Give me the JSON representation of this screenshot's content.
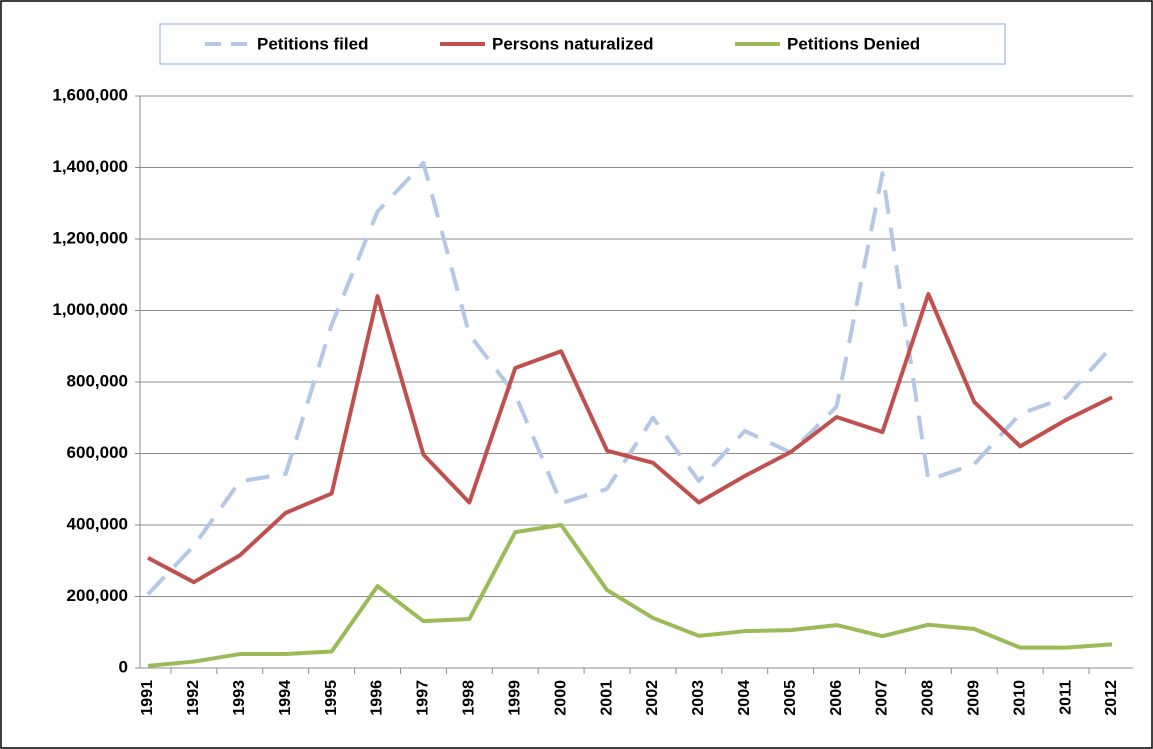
{
  "chart_data": {
    "type": "line",
    "categories": [
      "1991",
      "1992",
      "1993",
      "1994",
      "1995",
      "1996",
      "1997",
      "1998",
      "1999",
      "2000",
      "2001",
      "2002",
      "2003",
      "2004",
      "2005",
      "2006",
      "2007",
      "2008",
      "2009",
      "2010",
      "2011",
      "2012"
    ],
    "series": [
      {
        "name": "Petitions filed",
        "color": "#b4c7e7",
        "dashed": true,
        "values": [
          206000,
          342000,
          522000,
          543000,
          960000,
          1277000,
          1413000,
          933000,
          765000,
          461000,
          501000,
          700000,
          523000,
          663000,
          603000,
          731000,
          1384000,
          526000,
          570000,
          711000,
          757000,
          900000
        ]
      },
      {
        "name": "Persons naturalized",
        "color": "#c0504d",
        "dashed": false,
        "values": [
          308000,
          240000,
          315000,
          434000,
          488000,
          1040000,
          597000,
          463000,
          839000,
          886000,
          608000,
          574000,
          463000,
          537000,
          604000,
          702000,
          660000,
          1046000,
          744000,
          620000,
          694000,
          757000
        ]
      },
      {
        "name": "Petitions Denied",
        "color": "#9bbb59",
        "dashed": false,
        "values": [
          6000,
          18000,
          39000,
          39000,
          46000,
          229000,
          131000,
          137000,
          380000,
          400000,
          218000,
          140000,
          90000,
          103000,
          106000,
          120000,
          89000,
          121000,
          109000,
          57000,
          57000,
          66000
        ]
      }
    ],
    "ylim": [
      0,
      1600000
    ],
    "yticks": [
      {
        "value": 0,
        "label": "0"
      },
      {
        "value": 200000,
        "label": "200,000"
      },
      {
        "value": 400000,
        "label": "400,000"
      },
      {
        "value": 600000,
        "label": "600,000"
      },
      {
        "value": 800000,
        "label": "800,000"
      },
      {
        "value": 1000000,
        "label": "1,000,000"
      },
      {
        "value": 1200000,
        "label": "1,200,000"
      },
      {
        "value": 1400000,
        "label": "1,400,000"
      },
      {
        "value": 1600000,
        "label": "1,600,000"
      }
    ],
    "grid": true,
    "legend": "top"
  }
}
